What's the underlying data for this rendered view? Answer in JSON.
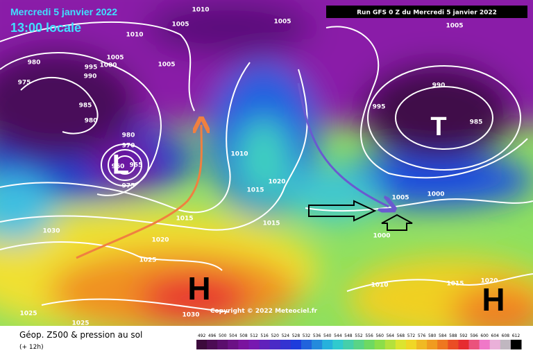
{
  "map": {
    "title": "Mercredi 5 janvier 2022",
    "time": "13:00 locale",
    "run": "Run GFS 0 Z du Mercredi 5 janvier 2022",
    "copyright": "Copyright © 2022 Meteociel.fr",
    "isobar_labels": [
      "1010",
      "1005",
      "1005",
      "1005",
      "1010",
      "1005",
      "1000",
      "995",
      "990",
      "1005",
      "980",
      "975",
      "985",
      "980",
      "980",
      "970",
      "960",
      "955",
      "975",
      "990",
      "995",
      "985",
      "1010",
      "1020",
      "1015",
      "1005",
      "1000",
      "1015",
      "1015",
      "1000",
      "1020",
      "1030",
      "1025",
      "1010",
      "1015",
      "1020",
      "1025",
      "1030",
      "1025"
    ],
    "centers": [
      "L",
      "H",
      "H",
      "T"
    ]
  },
  "legend": {
    "title": "Géop. Z500 & pression au sol",
    "lead": "(+ 12h)",
    "scale": [
      "492",
      "496",
      "500",
      "504",
      "508",
      "512",
      "516",
      "520",
      "524",
      "528",
      "532",
      "536",
      "540",
      "544",
      "548",
      "552",
      "556",
      "560",
      "564",
      "568",
      "572",
      "576",
      "580",
      "584",
      "588",
      "592",
      "596",
      "600",
      "604",
      "608",
      "612"
    ]
  }
}
